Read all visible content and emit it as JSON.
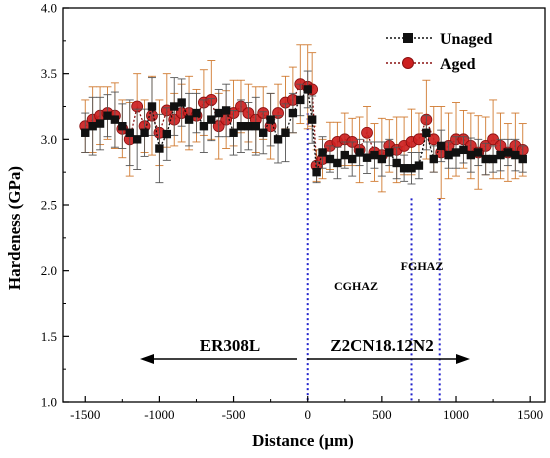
{
  "chart_data": {
    "type": "line",
    "title": "",
    "xlabel": "Distance (μm)",
    "ylabel": "Hardeness (GPa)",
    "xlim": [
      -1650,
      1600
    ],
    "ylim": [
      1.0,
      4.0
    ],
    "xticks": [
      -1500,
      -1000,
      -500,
      0,
      500,
      1000,
      1500
    ],
    "yticks": [
      1.0,
      1.5,
      2.0,
      2.5,
      3.0,
      3.5,
      4.0
    ],
    "xtick_labels": [
      "-1500",
      "-1000",
      "-500",
      "0",
      "500",
      "1000",
      "1500"
    ],
    "ytick_labels": [
      "1.0",
      "1.5",
      "2.0",
      "2.5",
      "3.0",
      "3.5",
      "4.0"
    ],
    "legend_position": "top-right",
    "grid": false,
    "series": [
      {
        "name": "Unaged",
        "color": "#111111",
        "marker": "square",
        "x": [
          -1500,
          -1450,
          -1400,
          -1350,
          -1300,
          -1250,
          -1200,
          -1150,
          -1100,
          -1050,
          -1000,
          -950,
          -900,
          -850,
          -800,
          -750,
          -700,
          -650,
          -600,
          -550,
          -500,
          -450,
          -400,
          -350,
          -300,
          -250,
          -200,
          -150,
          -100,
          -50,
          0,
          30,
          60,
          100,
          150,
          200,
          250,
          300,
          350,
          400,
          450,
          500,
          550,
          600,
          650,
          700,
          750,
          800,
          850,
          900,
          950,
          1000,
          1050,
          1100,
          1150,
          1200,
          1250,
          1300,
          1350,
          1400,
          1450
        ],
        "y": [
          3.05,
          3.1,
          3.12,
          3.18,
          3.15,
          3.1,
          3.05,
          3.0,
          3.05,
          3.25,
          2.93,
          3.04,
          3.25,
          3.28,
          3.15,
          3.2,
          3.1,
          3.15,
          3.2,
          3.22,
          3.05,
          3.1,
          3.1,
          3.1,
          3.05,
          3.15,
          3.0,
          3.05,
          3.2,
          3.3,
          3.38,
          3.15,
          2.75,
          2.9,
          2.85,
          2.82,
          2.88,
          2.85,
          2.9,
          2.86,
          2.88,
          2.85,
          2.9,
          2.82,
          2.78,
          2.78,
          2.8,
          3.05,
          2.85,
          2.95,
          2.88,
          2.9,
          2.92,
          2.88,
          2.9,
          2.85,
          2.85,
          2.88,
          2.9,
          2.88,
          2.85
        ],
        "err": [
          0.15,
          0.22,
          0.2,
          0.16,
          0.21,
          0.17,
          0.25,
          0.23,
          0.18,
          0.22,
          0.26,
          0.2,
          0.22,
          0.18,
          0.2,
          0.15,
          0.2,
          0.16,
          0.18,
          0.2,
          0.17,
          0.2,
          0.18,
          0.22,
          0.16,
          0.2,
          0.18,
          0.22,
          0.15,
          0.12,
          0.14,
          0.18,
          0.08,
          0.12,
          0.1,
          0.12,
          0.1,
          0.13,
          0.1,
          0.12,
          0.1,
          0.13,
          0.1,
          0.12,
          0.1,
          0.12,
          0.1,
          0.13,
          0.1,
          0.12,
          0.1,
          0.12,
          0.1,
          0.13,
          0.1,
          0.12,
          0.1,
          0.12,
          0.1,
          0.12,
          0.1
        ]
      },
      {
        "name": "Aged",
        "color": "#cc2020",
        "marker": "circle",
        "x": [
          -1500,
          -1450,
          -1400,
          -1350,
          -1300,
          -1250,
          -1200,
          -1150,
          -1100,
          -1050,
          -1000,
          -950,
          -900,
          -850,
          -800,
          -750,
          -700,
          -650,
          -600,
          -550,
          -500,
          -450,
          -400,
          -350,
          -300,
          -250,
          -200,
          -150,
          -100,
          -50,
          0,
          30,
          60,
          100,
          150,
          200,
          250,
          300,
          350,
          400,
          450,
          500,
          550,
          600,
          650,
          700,
          750,
          800,
          850,
          900,
          950,
          1000,
          1050,
          1100,
          1150,
          1200,
          1250,
          1300,
          1350,
          1400,
          1450
        ],
        "y": [
          3.1,
          3.15,
          3.18,
          3.2,
          3.18,
          3.08,
          3.0,
          3.25,
          3.1,
          3.18,
          3.05,
          3.22,
          3.15,
          3.2,
          3.2,
          3.18,
          3.28,
          3.3,
          3.1,
          3.15,
          3.2,
          3.25,
          3.2,
          3.15,
          3.2,
          3.1,
          3.2,
          3.28,
          3.3,
          3.42,
          3.4,
          3.38,
          2.8,
          2.85,
          2.95,
          2.98,
          3.0,
          2.98,
          2.92,
          3.05,
          2.9,
          2.88,
          2.95,
          2.92,
          2.95,
          2.98,
          3.0,
          3.15,
          3.0,
          2.9,
          2.95,
          3.0,
          3.0,
          2.95,
          2.9,
          2.95,
          3.0,
          2.95,
          2.9,
          2.95,
          2.92
        ],
        "err": [
          0.2,
          0.25,
          0.22,
          0.2,
          0.25,
          0.22,
          0.28,
          0.25,
          0.2,
          0.3,
          0.25,
          0.28,
          0.2,
          0.22,
          0.28,
          0.2,
          0.25,
          0.3,
          0.25,
          0.22,
          0.25,
          0.2,
          0.22,
          0.25,
          0.2,
          0.25,
          0.22,
          0.2,
          0.25,
          0.3,
          0.32,
          0.28,
          0.12,
          0.15,
          0.18,
          0.15,
          0.2,
          0.18,
          0.25,
          0.2,
          0.22,
          0.28,
          0.2,
          0.25,
          0.22,
          0.25,
          0.2,
          0.3,
          0.25,
          0.35,
          0.25,
          0.28,
          0.22,
          0.25,
          0.28,
          0.22,
          0.3,
          0.25,
          0.22,
          0.25,
          0.2
        ]
      }
    ],
    "annotations": {
      "region_left": "ER308L",
      "region_right": "Z2CN18.12N2",
      "zone_cghaz": "CGHAZ",
      "zone_fghaz": "FGHAZ"
    },
    "dotted_lines": [
      {
        "x": 0,
        "y_top": 3.2,
        "color": "#2020cc"
      },
      {
        "x": 700,
        "y_top": 2.55,
        "color": "#2020cc"
      },
      {
        "x": 890,
        "y_top": 2.55,
        "color": "#2020cc"
      }
    ]
  }
}
